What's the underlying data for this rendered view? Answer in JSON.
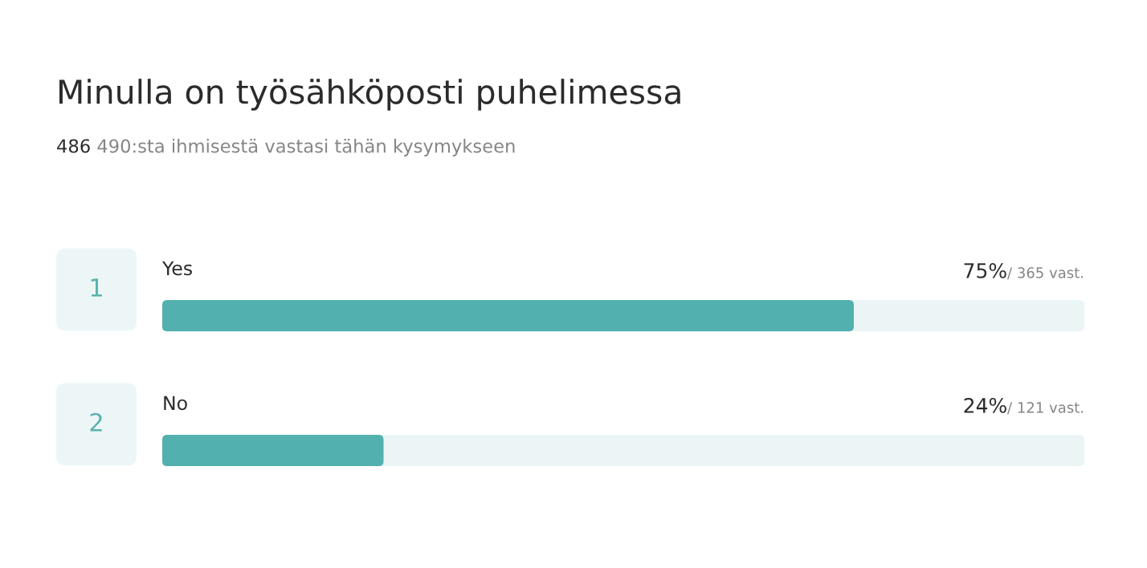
{
  "chart_data": {
    "type": "bar",
    "orientation": "horizontal",
    "title": "Minulla on työsähköposti puhelimessa",
    "subtitle": "486 490:sta ihmisestä vastasi tähän kysymykseen",
    "categories": [
      "Yes",
      "No"
    ],
    "values": [
      75,
      24
    ],
    "color": "#52b0ae",
    "value_labels": [
      "75%",
      "24%"
    ],
    "xlim": [
      0,
      100
    ],
    "annotations": [
      "1",
      "/ 365 vast.",
      "2",
      "/ 121 vast."
    ]
  }
}
